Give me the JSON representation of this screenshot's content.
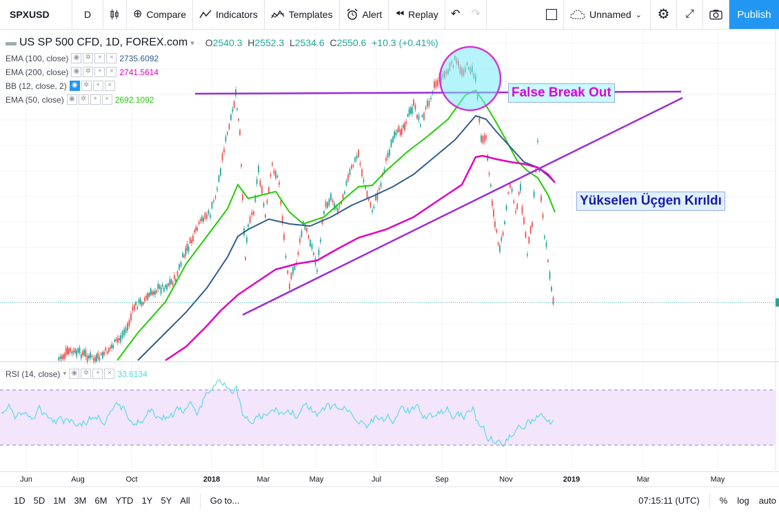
{
  "toolbar": {
    "symbol": "SPXUSD",
    "interval": "D",
    "compare": "Compare",
    "indicators": "Indicators",
    "templates": "Templates",
    "alert": "Alert",
    "replay": "Replay",
    "layout_name": "Unnamed",
    "publish": "Publish"
  },
  "legend": {
    "title": "US SP 500 CFD, 1D, FOREX.com",
    "ohlc": {
      "o_label": "O",
      "o": "2540.3",
      "h_label": "H",
      "h": "2552.3",
      "l_label": "L",
      "l": "2534.6",
      "c_label": "C",
      "c": "2550.6",
      "change": "+10.3 (+0.41%)"
    },
    "indicators": [
      {
        "name": "EMA (100, close)",
        "value": "2735.6092",
        "color": "#2e5c8a"
      },
      {
        "name": "EMA (200, close)",
        "value": "2741.5614",
        "color": "#e000c0"
      },
      {
        "name": "BB (12, close, 2)",
        "value": "",
        "color": "#2196f3"
      },
      {
        "name": "EMA (50, close)",
        "value": "2692.1092",
        "color": "#22cc00"
      }
    ]
  },
  "annotations": {
    "false_break": "False Break Out",
    "triangle": "Yükselen Üçgen Kırıldı"
  },
  "rsi": {
    "name": "RSI (14, close)",
    "value": "33.6134",
    "color": "#4dd9e8"
  },
  "xaxis": {
    "labels": [
      "Jun",
      "Aug",
      "Oct",
      "2018",
      "Mar",
      "May",
      "Jul",
      "Sep",
      "Nov",
      "2019",
      "Mar",
      "May"
    ]
  },
  "bottombar": {
    "ranges": [
      "1D",
      "5D",
      "1M",
      "3M",
      "6M",
      "YTD",
      "1Y",
      "5Y",
      "All"
    ],
    "goto": "Go to...",
    "time": "07:15:11 (UTC)",
    "percent": "%",
    "log": "log",
    "auto": "auto"
  },
  "colors": {
    "bull": "#26a69a",
    "bear": "#ef5350",
    "accent": "#2196f3",
    "trendline": "#9b2bd6",
    "circle": "#d632d6"
  }
}
